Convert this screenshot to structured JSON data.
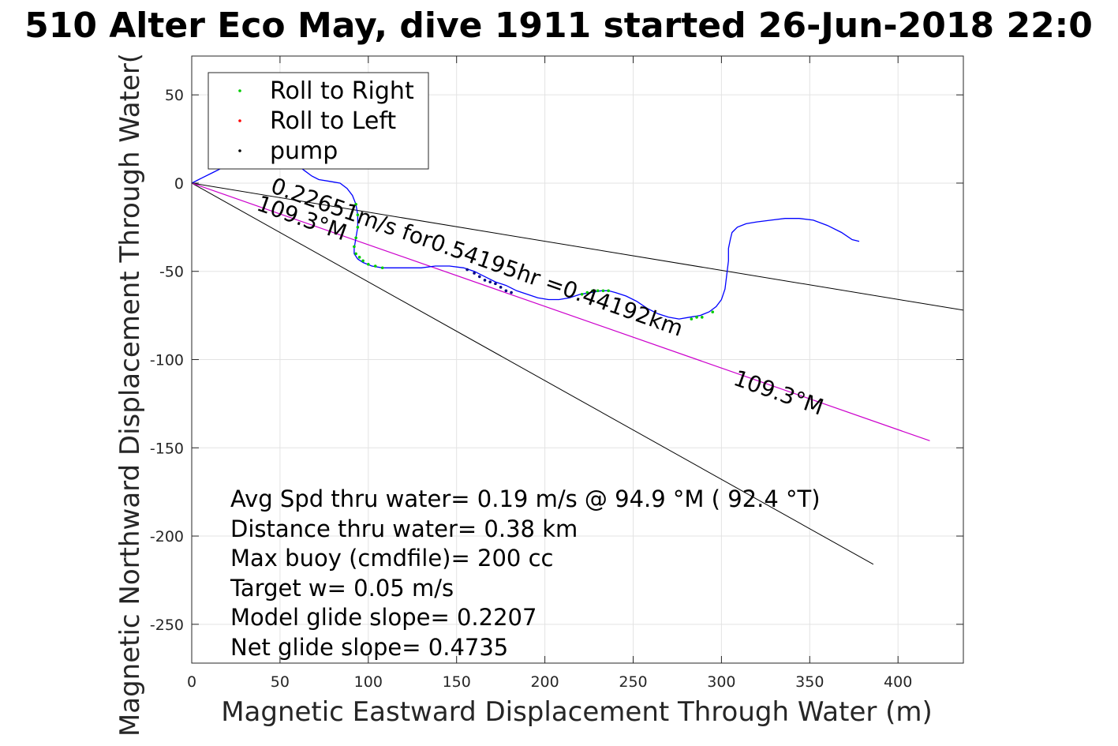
{
  "chart_data": {
    "type": "line",
    "title": "510 Alter Eco May, dive 1911 started 26-Jun-2018 22:0",
    "xlabel": "Magnetic Eastward Displacement Through Water (m)",
    "ylabel": "Magnetic Northward Displacement Through Water(",
    "xlim": [
      0,
      437
    ],
    "ylim": [
      -272,
      72
    ],
    "xticks": [
      0,
      50,
      100,
      150,
      200,
      250,
      300,
      350,
      400
    ],
    "yticks": [
      50,
      0,
      -50,
      -100,
      -150,
      -200,
      -250
    ],
    "grid": true,
    "legend": {
      "placement": "top-left",
      "entries": [
        {
          "label": "Roll to Right",
          "color": "#00cc00"
        },
        {
          "label": "Roll to Left",
          "color": "#ff0000"
        },
        {
          "label": "pump",
          "color": "#000000"
        }
      ]
    },
    "track": {
      "color": "#0000ff",
      "x": [
        0,
        6,
        12,
        18,
        24,
        30,
        36,
        42,
        48,
        52,
        56,
        60,
        64,
        68,
        72,
        78,
        84,
        88,
        91,
        93,
        94,
        94,
        93,
        92,
        92,
        94,
        97,
        102,
        108,
        115,
        122,
        130,
        138,
        146,
        154,
        160,
        166,
        172,
        178,
        184,
        190,
        196,
        202,
        208,
        214,
        220,
        226,
        232,
        236,
        240,
        246,
        252,
        258,
        264,
        270,
        276,
        282,
        288,
        293,
        297,
        300,
        302,
        303,
        304,
        304,
        305,
        306,
        309,
        314,
        320,
        328,
        336,
        344,
        352,
        360,
        368,
        374,
        378
      ],
      "y": [
        0,
        3,
        6,
        9,
        12,
        15,
        17,
        18,
        18,
        16,
        13,
        10,
        7,
        4,
        2,
        1,
        0,
        -3,
        -7,
        -12,
        -18,
        -25,
        -31,
        -37,
        -40,
        -43,
        -45,
        -47,
        -48,
        -48,
        -48,
        -48,
        -47,
        -47,
        -48,
        -50,
        -53,
        -56,
        -58,
        -61,
        -63,
        -65,
        -66,
        -66,
        -65,
        -63,
        -62,
        -61,
        -61,
        -62,
        -64,
        -67,
        -71,
        -74,
        -76,
        -77,
        -76,
        -75,
        -73,
        -70,
        -66,
        -60,
        -52,
        -44,
        -37,
        -32,
        -28,
        -25,
        -23,
        -22,
        -21,
        -20,
        -20,
        -21,
        -24,
        -28,
        -32,
        -33
      ]
    },
    "right_roll_points": {
      "color": "#00cc00",
      "x": [
        93,
        94,
        94,
        93,
        92,
        93,
        95,
        97,
        100,
        104,
        108,
        221,
        224,
        227,
        230,
        233,
        236,
        283,
        286,
        289,
        295
      ],
      "y": [
        -12,
        -18,
        -25,
        -31,
        -36,
        -40,
        -42,
        -44,
        -46,
        -47,
        -48,
        -63,
        -62,
        -61,
        -61,
        -61,
        -61,
        -77,
        -76,
        -76,
        -73
      ]
    },
    "pump_points": {
      "color": "#000080",
      "x": [
        156,
        160,
        163,
        166,
        169,
        172,
        175,
        178,
        181
      ],
      "y": [
        -49,
        -51,
        -53,
        -55,
        -56,
        -57,
        -59,
        -61,
        -62
      ]
    },
    "lines": [
      {
        "name": "",
        "color": "#000000",
        "x": [
          0,
          437
        ],
        "y": [
          0,
          -72
        ]
      },
      {
        "name": "",
        "color": "#000000",
        "x": [
          0,
          386
        ],
        "y": [
          0,
          -216
        ]
      },
      {
        "name": "",
        "color": "#cc00cc",
        "x": [
          0,
          418
        ],
        "y": [
          0,
          -146
        ]
      }
    ],
    "annotations": [
      {
        "text": "0.22651m/s for0.54195hr =0.44192km",
        "x": 44,
        "y": -5,
        "angle": 19.4
      },
      {
        "text": "109.3°M",
        "x": 36,
        "y": -15,
        "angle": 19.4
      },
      {
        "text": "109.3°M",
        "x": 306,
        "y": -114,
        "angle": 19.4
      }
    ],
    "stats": [
      "Avg Spd thru water=  0.19 m/s @  94.9 °M ( 92.4 °T)",
      "Distance thru water=  0.38 km",
      "Max buoy (cmdfile)= 200 cc",
      "Target w= 0.05 m/s",
      "Model glide slope= 0.2207",
      "Net glide slope= 0.4735"
    ]
  }
}
